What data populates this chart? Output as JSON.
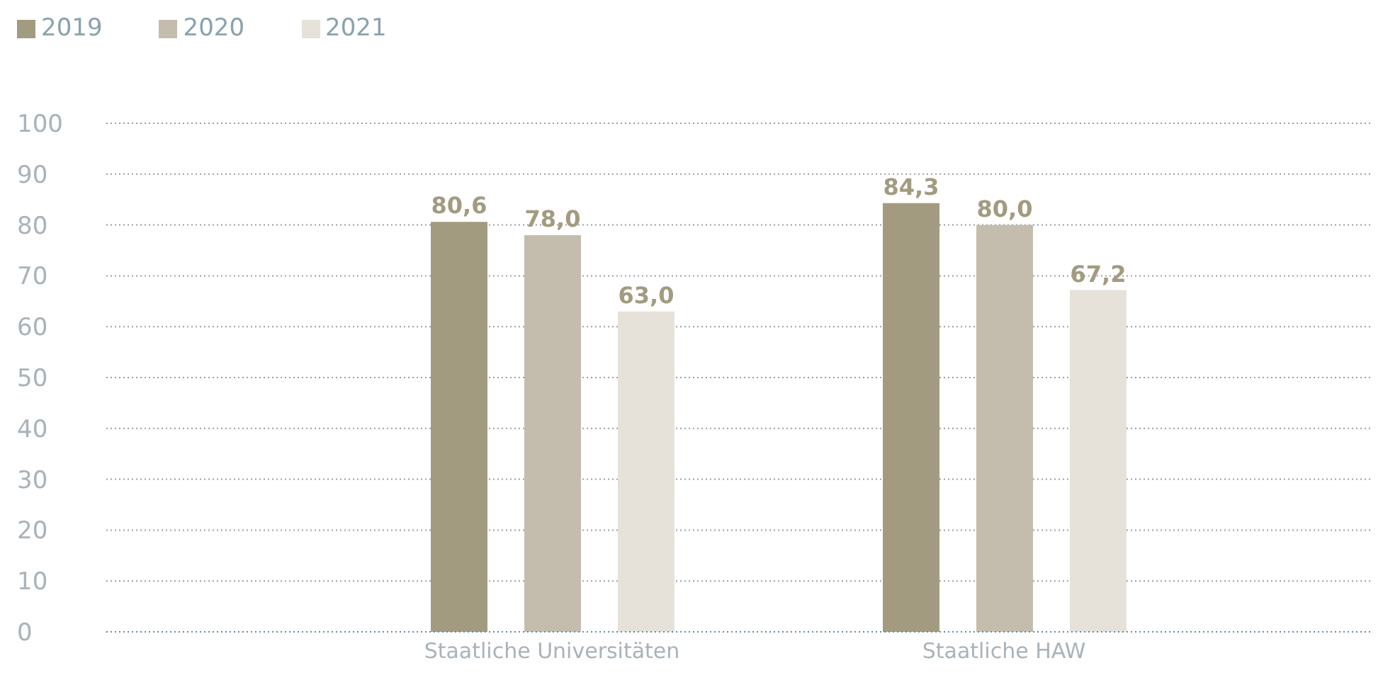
{
  "chart_data": {
    "type": "bar",
    "categories": [
      "Staatliche Universitäten",
      "Staatliche HAW"
    ],
    "series": [
      {
        "name": "2019",
        "color": "#a39b80",
        "values": [
          80.6,
          84.3
        ],
        "value_labels": [
          "80,6",
          "84,3"
        ]
      },
      {
        "name": "2020",
        "color": "#c4bdae",
        "values": [
          78.0,
          80.0
        ],
        "value_labels": [
          "78,0",
          "80,0"
        ]
      },
      {
        "name": "2021",
        "color": "#e6e2da",
        "values": [
          63.0,
          67.2
        ],
        "value_labels": [
          "63,0",
          "67,2"
        ]
      }
    ],
    "ylim": [
      0,
      100
    ],
    "yticks": [
      0,
      10,
      20,
      30,
      40,
      50,
      60,
      70,
      80,
      90,
      100
    ],
    "grid": "y",
    "legend": "top left"
  }
}
